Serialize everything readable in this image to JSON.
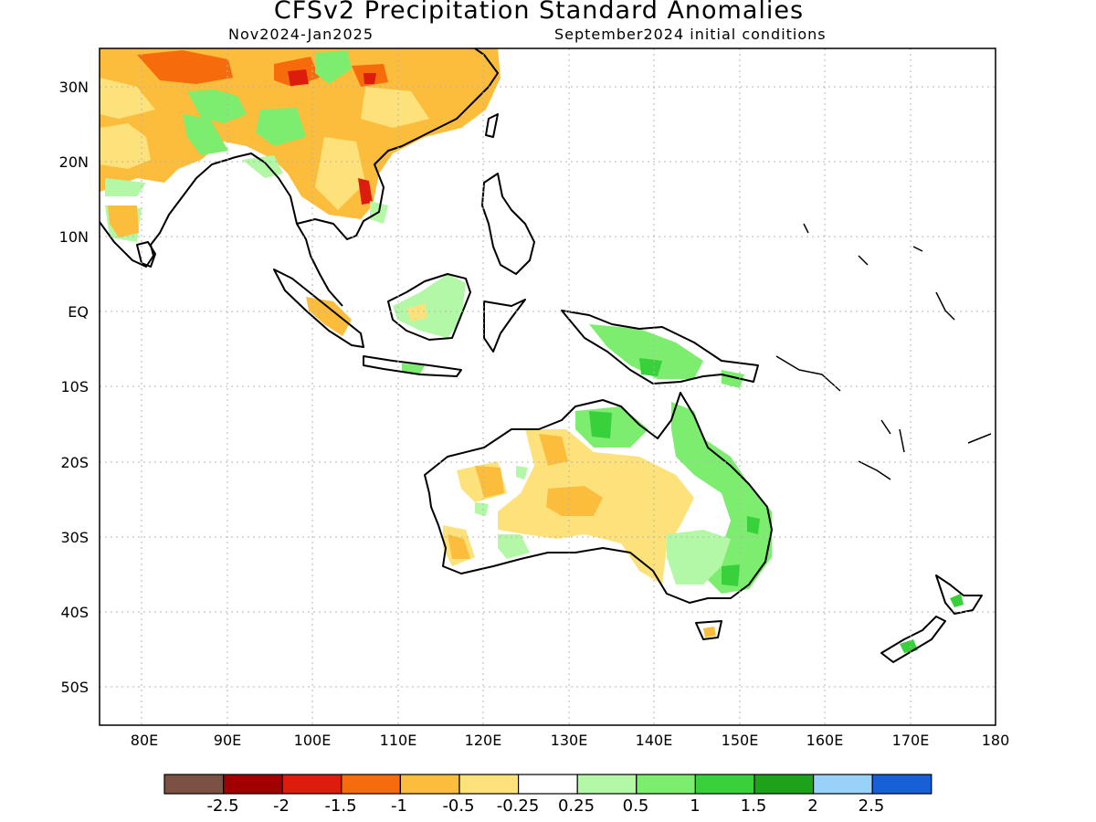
{
  "title": "CFSv2 Precipitation Standard Anomalies",
  "subtitle_left": "Nov2024-Jan2025",
  "subtitle_right": "September2024 initial conditions",
  "lat_labels": [
    "30N",
    "20N",
    "10N",
    "EQ",
    "10S",
    "20S",
    "30S",
    "40S",
    "50S"
  ],
  "lon_labels": [
    "80E",
    "90E",
    "100E",
    "110E",
    "120E",
    "130E",
    "140E",
    "150E",
    "160E",
    "170E",
    "180"
  ],
  "colorbar": {
    "colors": [
      "#7a5143",
      "#a00000",
      "#dc1c0c",
      "#f66c0c",
      "#fbbd3b",
      "#fde27c",
      "#ffffff",
      "#b3f8a6",
      "#7ced6e",
      "#38d13c",
      "#1ea21c",
      "#98d2f8",
      "#1760d8"
    ],
    "labels": [
      "-2.5",
      "-2",
      "-1.5",
      "-1",
      "-0.5",
      "-0.25",
      "0.25",
      "0.5",
      "1",
      "1.5",
      "2",
      "2.5"
    ]
  }
}
